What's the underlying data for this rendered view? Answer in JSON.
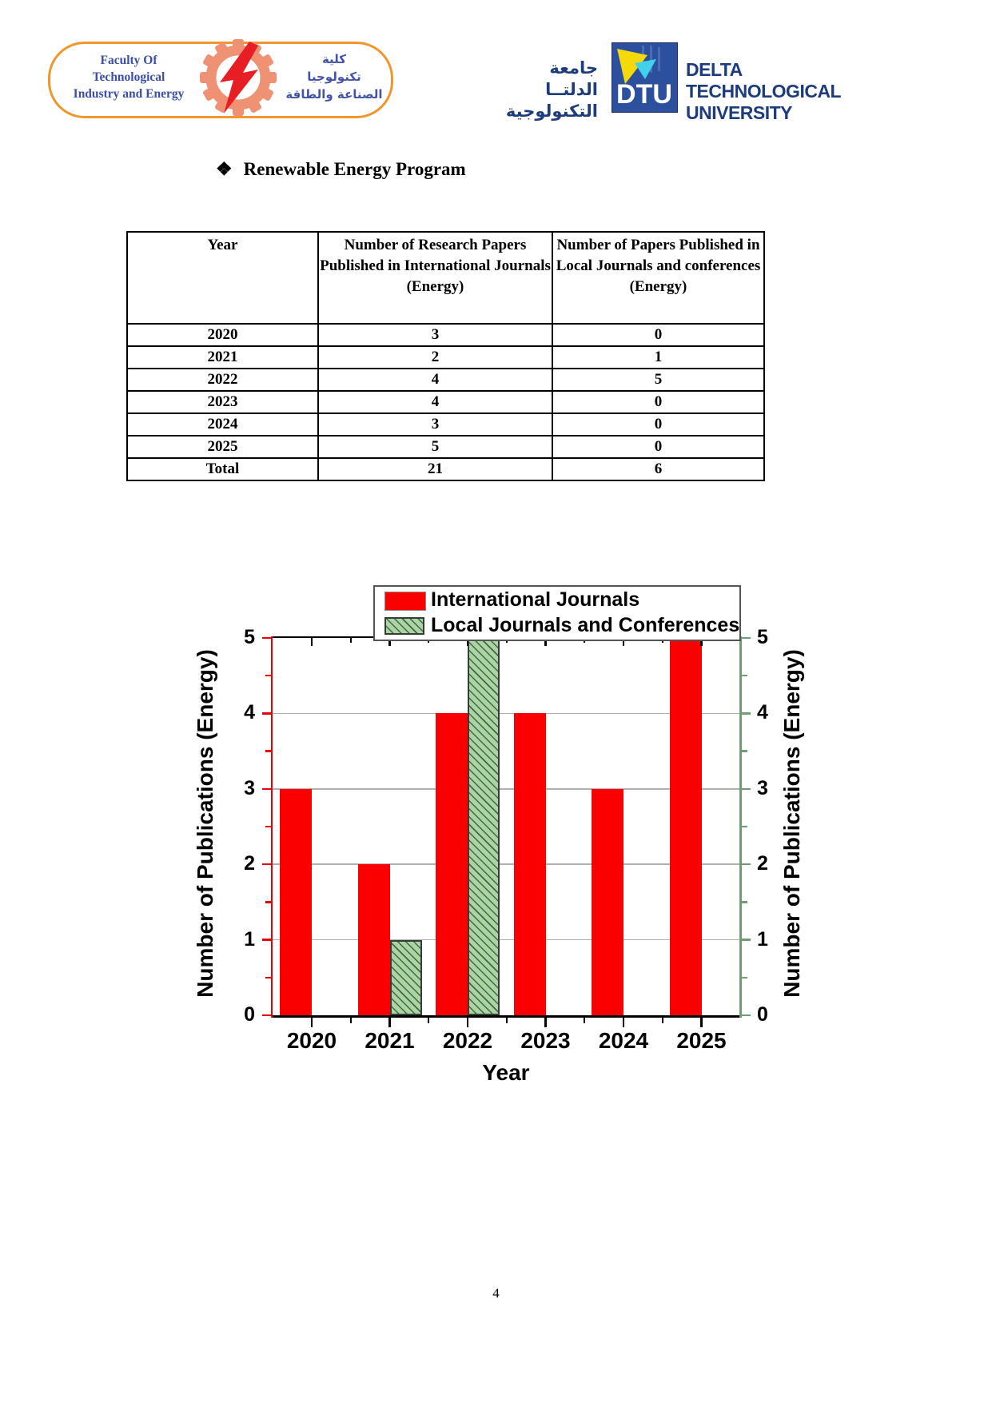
{
  "page": {
    "number": "4"
  },
  "header": {
    "faculty": {
      "english_lines": [
        "Faculty Of",
        "Technological",
        "Industry and Energy"
      ],
      "arabic_lines": [
        "كلية",
        "تكنولوجيا",
        "الصناعة والطاقة"
      ]
    },
    "university": {
      "arabic_line1": "جامعة الدلتــا",
      "arabic_line2": "التكنولوجية",
      "abbr": "DTU",
      "name_line1": "DELTA TECHNOLOGICAL",
      "name_line2": "UNIVERSITY"
    }
  },
  "section": {
    "bullet": "❖",
    "title": "Renewable Energy Program"
  },
  "table": {
    "columns": [
      "Year",
      "Number of Research Papers Published in International Journals (Energy)",
      "Number of Papers Published in Local Journals and conferences (Energy)"
    ],
    "rows": [
      [
        "2020",
        "3",
        "0"
      ],
      [
        "2021",
        "2",
        "1"
      ],
      [
        "2022",
        "4",
        "5"
      ],
      [
        "2023",
        "4",
        "0"
      ],
      [
        "2024",
        "3",
        "0"
      ],
      [
        "2025",
        "5",
        "0"
      ],
      [
        "Total",
        "21",
        "6"
      ]
    ]
  },
  "chart_data": {
    "type": "bar",
    "categories": [
      "2020",
      "2021",
      "2022",
      "2023",
      "2024",
      "2025"
    ],
    "series": [
      {
        "name": "International Journals",
        "values": [
          3,
          2,
          4,
          4,
          3,
          5
        ]
      },
      {
        "name": "Local Journals and Conferences",
        "values": [
          0,
          1,
          5,
          0,
          0,
          0
        ]
      }
    ],
    "xlabel": "Year",
    "ylabel_left": "Number of Publications (Energy)",
    "ylabel_right": "Number of Publications (Energy)",
    "ylim": [
      0,
      5
    ],
    "yticks": [
      0,
      1,
      2,
      3,
      4,
      5
    ],
    "grid": true,
    "legend_position": "top-inside-frame"
  },
  "colors": {
    "bar_red": "#FB0000",
    "bar_green_fill": "#A9D5A1",
    "bar_green_hatch": "#49604E",
    "left_axis_red": "#E8000B",
    "right_axis_green": "#6F9E74",
    "gridline": "#B0B0B0",
    "logo_orange": "#F2962B",
    "gear_salmon": "#EF9173",
    "bolt_red": "#E81E25",
    "navy": "#1D3C7C",
    "emblem_blue": "#2D509E",
    "emblem_yellow": "#F5D90A",
    "emblem_cyan": "#3FD2EA"
  }
}
